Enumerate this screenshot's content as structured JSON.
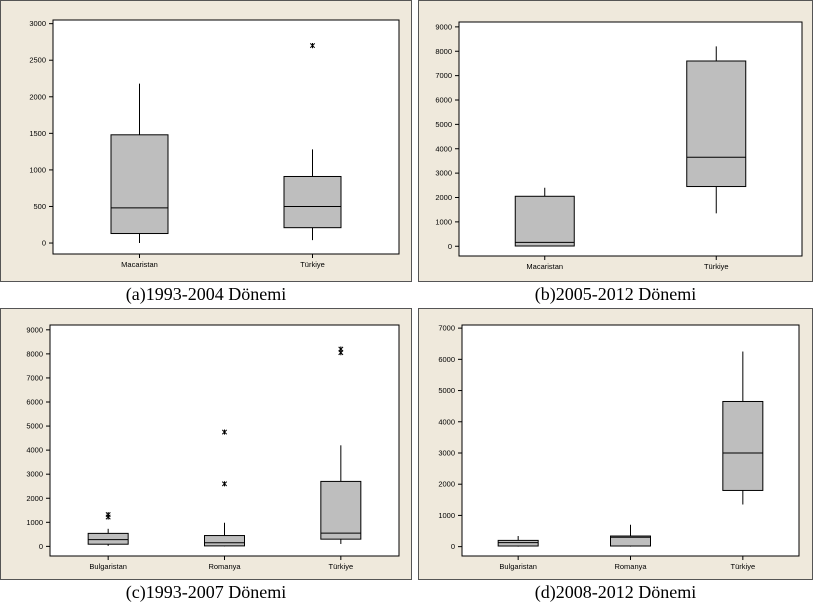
{
  "chart_data": [
    {
      "type": "boxplot",
      "caption": "(a)1993-2004 Dönemi",
      "categories": [
        "Macaristan",
        "Türkiye"
      ],
      "ylim": [
        -150,
        3050
      ],
      "yticks": [
        0,
        500,
        1000,
        1500,
        2000,
        2500,
        3000
      ],
      "boxes": [
        {
          "min": 0,
          "q1": 130,
          "median": 480,
          "q3": 1480,
          "max": 2180,
          "outliers": []
        },
        {
          "min": 40,
          "q1": 210,
          "median": 500,
          "q3": 910,
          "max": 1280,
          "outliers": [
            2700
          ]
        }
      ]
    },
    {
      "type": "boxplot",
      "caption": "(b)2005-2012 Dönemi",
      "categories": [
        "Macaristan",
        "Türkiye"
      ],
      "ylim": [
        -400,
        9200
      ],
      "yticks": [
        0,
        1000,
        2000,
        3000,
        4000,
        5000,
        6000,
        7000,
        8000,
        9000
      ],
      "boxes": [
        {
          "min": 0,
          "q1": 10,
          "median": 160,
          "q3": 2050,
          "max": 2400,
          "outliers": []
        },
        {
          "min": 1350,
          "q1": 2450,
          "median": 3650,
          "q3": 7600,
          "max": 8200,
          "outliers": []
        }
      ]
    },
    {
      "type": "boxplot",
      "caption": "(c)1993-2007 Dönemi",
      "categories": [
        "Bulgaristan",
        "Romanya",
        "Türkiye"
      ],
      "ylim": [
        -400,
        9200
      ],
      "yticks": [
        0,
        1000,
        2000,
        3000,
        4000,
        5000,
        6000,
        7000,
        8000,
        9000
      ],
      "boxes": [
        {
          "min": 20,
          "q1": 90,
          "median": 280,
          "q3": 540,
          "max": 730,
          "outliers": [
            1220,
            1320
          ]
        },
        {
          "min": 0,
          "q1": 20,
          "median": 150,
          "q3": 450,
          "max": 980,
          "outliers": [
            2600,
            4750
          ]
        },
        {
          "min": 100,
          "q1": 300,
          "median": 550,
          "q3": 2700,
          "max": 4200,
          "outliers": [
            8050,
            8200
          ]
        }
      ]
    },
    {
      "type": "boxplot",
      "caption": "(d)2008-2012 Dönemi",
      "categories": [
        "Bulgaristan",
        "Romanya",
        "Türkiye"
      ],
      "ylim": [
        -300,
        7100
      ],
      "yticks": [
        0,
        1000,
        2000,
        3000,
        4000,
        5000,
        6000,
        7000
      ],
      "boxes": [
        {
          "min": 0,
          "q1": 20,
          "median": 130,
          "q3": 200,
          "max": 340,
          "outliers": []
        },
        {
          "min": 0,
          "q1": 20,
          "median": 300,
          "q3": 340,
          "max": 700,
          "outliers": []
        },
        {
          "min": 1350,
          "q1": 1800,
          "median": 3000,
          "q3": 4650,
          "max": 6250,
          "outliers": []
        }
      ]
    }
  ],
  "colors": {
    "frame_background": "#efe9dc",
    "plot_background": "#ffffff",
    "box_fill": "#bebebe",
    "line": "#000000"
  }
}
